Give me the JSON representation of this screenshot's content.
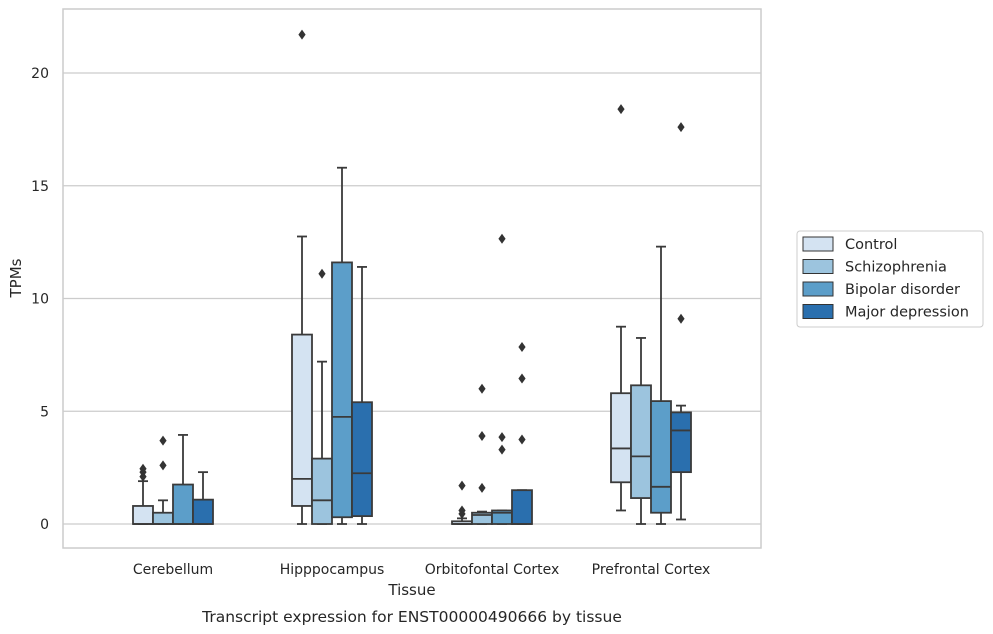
{
  "caption": "Transcript expression for ENST00000490666 by tissue",
  "chart_data": {
    "type": "box",
    "xlabel": "Tissue",
    "ylabel": "TPMs",
    "ylim": [
      -1.1,
      22.6
    ],
    "yticks": [
      0,
      5,
      10,
      15,
      20
    ],
    "grid": "horizontal",
    "legend_position": "right",
    "categories": [
      "Cerebellum",
      "Hipppocampus",
      "Orbitofontal Cortex",
      "Prefrontal Cortex"
    ],
    "series": [
      {
        "name": "Control",
        "color": "#d4e3f2",
        "boxes": [
          {
            "q1": 0,
            "median": 0,
            "q3": 0.8,
            "whisker_low": 0,
            "whisker_high": 1.9,
            "outliers": [
              2.1,
              2.3,
              2.45
            ]
          },
          {
            "q1": 0.8,
            "median": 2.0,
            "q3": 8.4,
            "whisker_low": 0,
            "whisker_high": 12.75,
            "outliers": [
              21.7
            ]
          },
          {
            "q1": 0,
            "median": 0,
            "q3": 0.12,
            "whisker_low": 0,
            "whisker_high": 0.25,
            "outliers": [
              0.45,
              0.6,
              1.7
            ]
          },
          {
            "q1": 1.85,
            "median": 3.35,
            "q3": 5.8,
            "whisker_low": 0.6,
            "whisker_high": 8.75,
            "outliers": [
              18.4
            ]
          }
        ]
      },
      {
        "name": "Schizophrenia",
        "color": "#9cc4de",
        "boxes": [
          {
            "q1": 0,
            "median": 0,
            "q3": 0.5,
            "whisker_low": 0,
            "whisker_high": 1.05,
            "outliers": [
              2.6,
              3.7
            ]
          },
          {
            "q1": 0,
            "median": 1.05,
            "q3": 2.9,
            "whisker_low": 0,
            "whisker_high": 7.2,
            "outliers": [
              11.1
            ]
          },
          {
            "q1": 0,
            "median": 0.4,
            "q3": 0.5,
            "whisker_low": 0,
            "whisker_high": 0.55,
            "outliers": [
              1.6,
              3.9,
              6.0
            ]
          },
          {
            "q1": 1.15,
            "median": 3.0,
            "q3": 6.15,
            "whisker_low": 0,
            "whisker_high": 8.25,
            "outliers": []
          }
        ]
      },
      {
        "name": "Bipolar disorder",
        "color": "#5c9ec9",
        "boxes": [
          {
            "q1": 0,
            "median": 0,
            "q3": 1.75,
            "whisker_low": 0,
            "whisker_high": 3.95,
            "outliers": []
          },
          {
            "q1": 0.3,
            "median": 4.75,
            "q3": 11.6,
            "whisker_low": 0,
            "whisker_high": 15.8,
            "outliers": []
          },
          {
            "q1": 0,
            "median": 0.5,
            "q3": 0.6,
            "whisker_low": 0,
            "whisker_high": 0.6,
            "outliers": [
              3.3,
              3.85,
              12.65
            ]
          },
          {
            "q1": 0.5,
            "median": 1.65,
            "q3": 5.45,
            "whisker_low": 0,
            "whisker_high": 12.3,
            "outliers": []
          }
        ]
      },
      {
        "name": "Major depression",
        "color": "#2a6fae",
        "boxes": [
          {
            "q1": 0,
            "median": 0,
            "q3": 1.08,
            "whisker_low": 0,
            "whisker_high": 2.3,
            "outliers": []
          },
          {
            "q1": 0.35,
            "median": 2.25,
            "q3": 5.4,
            "whisker_low": 0,
            "whisker_high": 11.4,
            "outliers": []
          },
          {
            "q1": 0,
            "median": 0,
            "q3": 1.5,
            "whisker_low": 0,
            "whisker_high": 1.5,
            "outliers": [
              3.75,
              6.45,
              7.85
            ]
          },
          {
            "q1": 2.3,
            "median": 4.15,
            "q3": 4.95,
            "whisker_low": 0.2,
            "whisker_high": 5.25,
            "outliers": [
              9.1,
              17.6
            ]
          }
        ]
      }
    ]
  }
}
